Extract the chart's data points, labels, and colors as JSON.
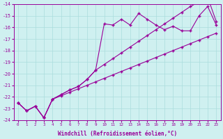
{
  "xlabel": "Windchill (Refroidissement éolien,°C)",
  "bg_color": "#cff0f0",
  "grid_color": "#aadddd",
  "line_color": "#990099",
  "xlim": [
    -0.5,
    23.5
  ],
  "ylim": [
    -24,
    -14
  ],
  "xticks": [
    0,
    1,
    2,
    3,
    4,
    5,
    6,
    7,
    8,
    9,
    10,
    11,
    12,
    13,
    14,
    15,
    16,
    17,
    18,
    19,
    20,
    21,
    22,
    23
  ],
  "yticks": [
    -24,
    -23,
    -22,
    -21,
    -20,
    -19,
    -18,
    -17,
    -16,
    -15,
    -14
  ],
  "series1_x": [
    0,
    1,
    2,
    3,
    4,
    5,
    6,
    7,
    8,
    9,
    10,
    11,
    12,
    13,
    14,
    15,
    16,
    17,
    18,
    19,
    20,
    21,
    22,
    23
  ],
  "series1_y": [
    -22.5,
    -23.2,
    -22.8,
    -23.8,
    -22.2,
    -21.8,
    -21.4,
    -21.1,
    -20.5,
    -19.7,
    -15.7,
    -15.8,
    -15.3,
    -15.8,
    -14.8,
    -15.3,
    -15.8,
    -16.2,
    -15.9,
    -16.3,
    -16.3,
    -15.0,
    -14.2,
    -15.8
  ],
  "series2_x": [
    0,
    1,
    2,
    3,
    4,
    5,
    6,
    7,
    8,
    9,
    10,
    11,
    12,
    13,
    14,
    15,
    16,
    17,
    18,
    19,
    20,
    21,
    22,
    23
  ],
  "series2_y": [
    -22.5,
    -23.2,
    -22.8,
    -23.8,
    -22.2,
    -21.8,
    -21.4,
    -21.1,
    -20.5,
    -19.7,
    -19.2,
    -18.7,
    -18.2,
    -17.7,
    -17.2,
    -16.7,
    -16.2,
    -15.7,
    -15.2,
    -14.7,
    -14.2,
    -13.8,
    -13.4,
    -15.5
  ],
  "series3_x": [
    0,
    1,
    2,
    3,
    4,
    5,
    6,
    7,
    8,
    9,
    10,
    11,
    12,
    13,
    14,
    15,
    16,
    17,
    18,
    19,
    20,
    21,
    22,
    23
  ],
  "series3_y": [
    -22.5,
    -23.2,
    -22.8,
    -23.8,
    -22.2,
    -21.9,
    -21.6,
    -21.3,
    -21.0,
    -20.7,
    -20.4,
    -20.1,
    -19.8,
    -19.5,
    -19.2,
    -18.9,
    -18.6,
    -18.3,
    -18.0,
    -17.7,
    -17.4,
    -17.1,
    -16.8,
    -16.5
  ]
}
